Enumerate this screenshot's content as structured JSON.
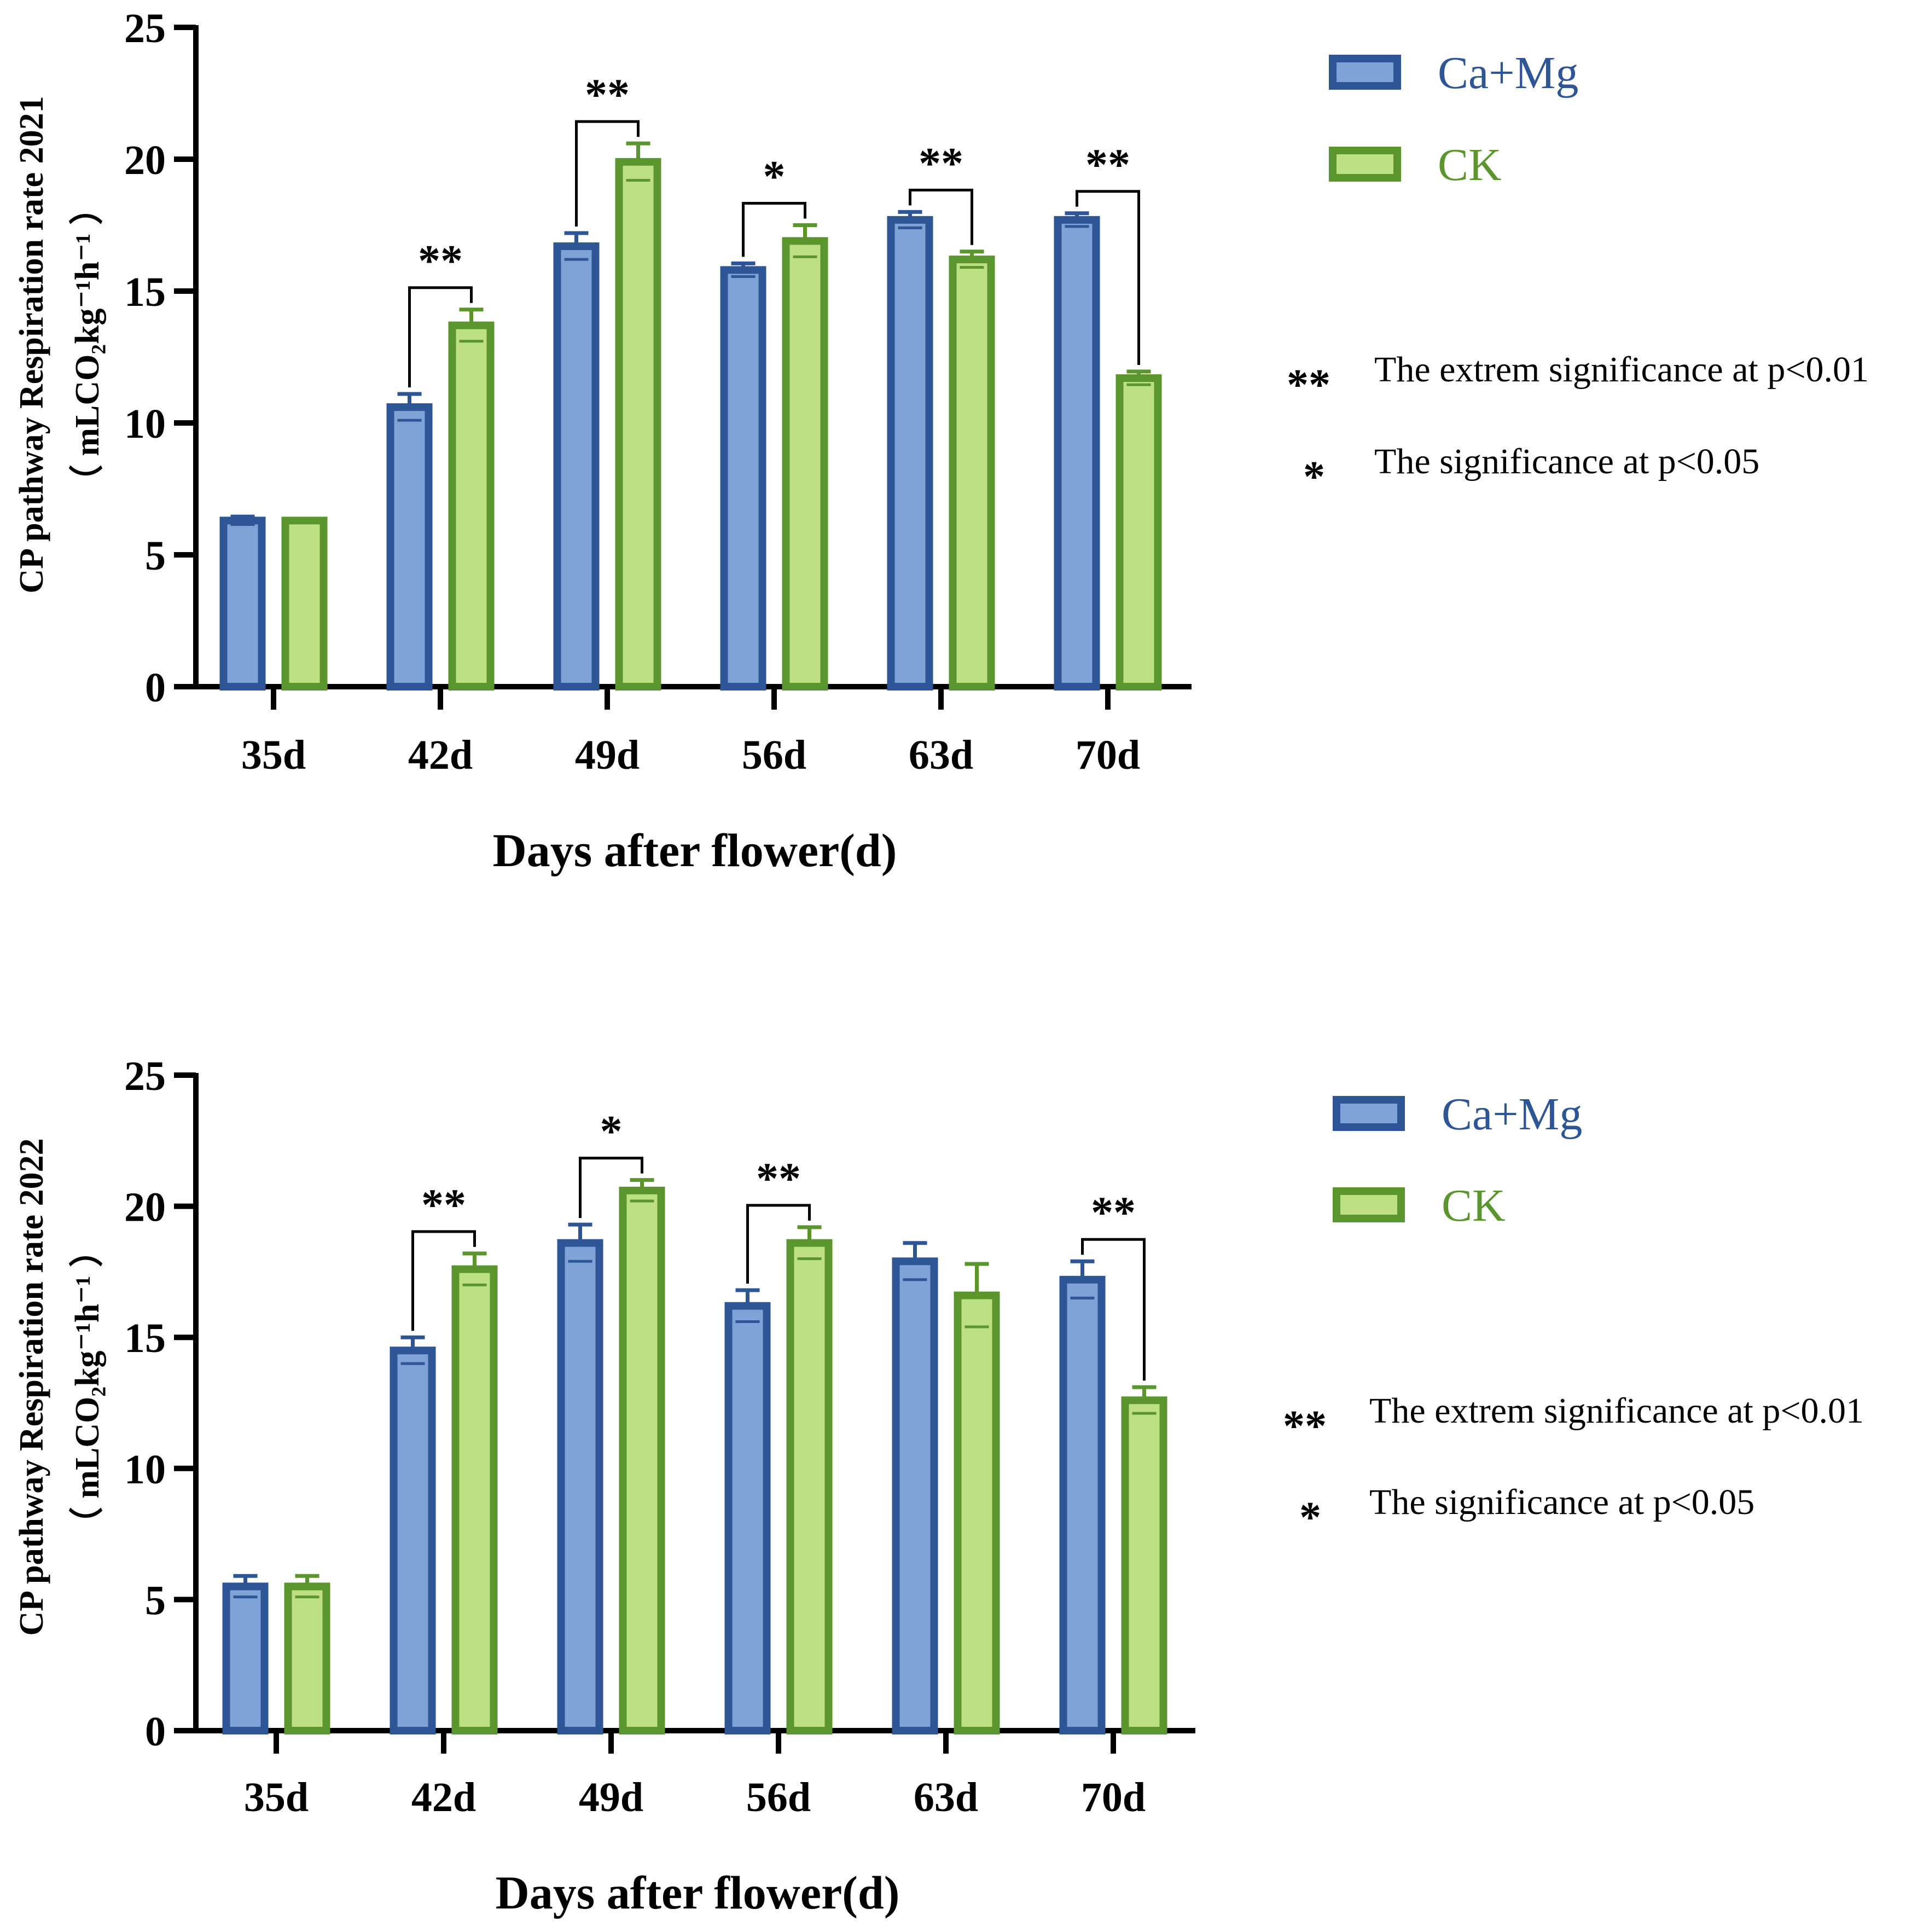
{
  "colors": {
    "camg_edge": "#2e5596",
    "camg_fill": "#7fa2d7",
    "ck_edge": "#5a962d",
    "ck_fill": "#bee084",
    "axis": "#000000",
    "camg_text": "#2e5596",
    "ck_text": "#5a962d"
  },
  "notes": {
    "extreme_symbol": "**",
    "extreme_text": "The extrem significance at p<0.01",
    "sig_symbol": "*",
    "sig_text": "The significance at p<0.05"
  },
  "chart_data": [
    {
      "type": "bar",
      "title": "",
      "xlabel": "Days after flower(d)",
      "ylabel_main": "CP pathway Respiration rate 2021",
      "ylabel_unit": "（ mLCO₂kg⁻¹h⁻¹ ）",
      "ylim": [
        0,
        25
      ],
      "yticks": [
        "0",
        "5",
        "10",
        "15",
        "20",
        "25"
      ],
      "categories": [
        "35d",
        "42d",
        "49d",
        "56d",
        "63d",
        "70d"
      ],
      "series": [
        {
          "name": "Ca+Mg",
          "values": [
            6.3,
            10.6,
            16.7,
            15.8,
            17.7,
            17.7
          ],
          "errors": [
            0.15,
            0.5,
            0.5,
            0.25,
            0.3,
            0.25
          ]
        },
        {
          "name": "CK",
          "values": [
            6.3,
            13.7,
            19.9,
            16.9,
            16.2,
            11.7
          ],
          "errors": [
            0.05,
            0.6,
            0.7,
            0.6,
            0.3,
            0.25
          ]
        }
      ],
      "significance": [
        "",
        "**",
        "**",
        "*",
        "**",
        "**"
      ],
      "legend": [
        "Ca+Mg",
        "CK"
      ]
    },
    {
      "type": "bar",
      "title": "",
      "xlabel": "Days after flower(d)",
      "ylabel_main": "CP pathway Respiration rate 2022",
      "ylabel_unit": "（ mLCO₂kg⁻¹h⁻¹ ）",
      "ylim": [
        0,
        25
      ],
      "yticks": [
        "0",
        "5",
        "10",
        "15",
        "20",
        "25"
      ],
      "categories": [
        "35d",
        "42d",
        "49d",
        "56d",
        "63d",
        "70d"
      ],
      "series": [
        {
          "name": "Ca+Mg",
          "values": [
            5.5,
            14.5,
            18.6,
            16.2,
            17.9,
            17.2
          ],
          "errors": [
            0.4,
            0.5,
            0.7,
            0.6,
            0.7,
            0.7
          ]
        },
        {
          "name": "CK",
          "values": [
            5.5,
            17.6,
            20.6,
            18.6,
            16.6,
            12.6
          ],
          "errors": [
            0.4,
            0.6,
            0.4,
            0.6,
            1.2,
            0.5
          ]
        }
      ],
      "significance": [
        "",
        "**",
        "*",
        "**",
        "",
        "**"
      ],
      "legend": [
        "Ca+Mg",
        "CK"
      ]
    }
  ]
}
